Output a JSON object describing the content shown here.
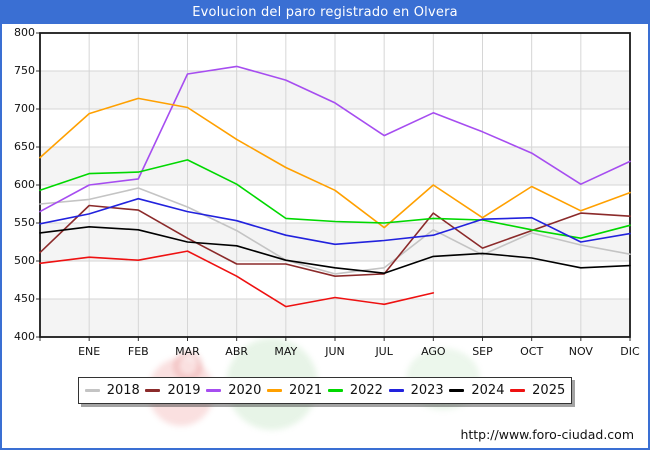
{
  "title": "Evolucion del paro registrado en Olvera",
  "footer": {
    "url": "http://www.foro-ciudad.com"
  },
  "chart_data": {
    "type": "line",
    "title": "Evolucion del paro registrado en Olvera",
    "categories": [
      "ENE",
      "FEB",
      "MAR",
      "ABR",
      "MAY",
      "JUN",
      "JUL",
      "AGO",
      "SEP",
      "OCT",
      "NOV",
      "DIC"
    ],
    "note": "Each series has an extra unlabeled starting point drawn on the y-axis before ENE; 2025 stops at AGO",
    "axis": {
      "y_min": 400,
      "y_max": 800,
      "y_step": 50
    },
    "y_ticks": [
      800,
      750,
      700,
      650,
      600,
      550,
      500,
      450,
      400
    ],
    "grid": true,
    "alternating_bands": true,
    "legend_position": "bottom",
    "colors": {
      "band": "#f4f4f4",
      "gridline": "#d6d6d6",
      "plot_border": "#1a1a1a",
      "title_bar": "#3a6fd3"
    },
    "series": [
      {
        "name": "2018",
        "color": "#c4c4c4",
        "values": [
          575,
          581,
          596,
          571,
          540,
          501,
          483,
          491,
          541,
          508,
          537,
          521,
          509
        ]
      },
      {
        "name": "2019",
        "color": "#8b2a2a",
        "values": [
          511,
          573,
          567,
          530,
          496,
          496,
          480,
          483,
          563,
          517,
          540,
          563,
          559
        ]
      },
      {
        "name": "2020",
        "color": "#a64df0",
        "values": [
          565,
          600,
          608,
          746,
          756,
          738,
          708,
          665,
          695,
          670,
          642,
          601,
          631
        ]
      },
      {
        "name": "2021",
        "color": "#ffa000",
        "values": [
          636,
          694,
          714,
          702,
          660,
          623,
          593,
          544,
          600,
          557,
          598,
          566,
          590
        ]
      },
      {
        "name": "2022",
        "color": "#00d800",
        "values": [
          593,
          615,
          617,
          633,
          601,
          556,
          552,
          550,
          556,
          554,
          541,
          530,
          547
        ]
      },
      {
        "name": "2023",
        "color": "#2222dd",
        "values": [
          549,
          562,
          582,
          565,
          553,
          534,
          522,
          527,
          534,
          555,
          557,
          525,
          536
        ]
      },
      {
        "name": "2024",
        "color": "#000000",
        "values": [
          537,
          545,
          541,
          525,
          520,
          501,
          491,
          484,
          506,
          510,
          504,
          491,
          494
        ]
      },
      {
        "name": "2025",
        "color": "#ee1111",
        "values": [
          497,
          505,
          501,
          513,
          480,
          440,
          452,
          443,
          458
        ]
      }
    ]
  }
}
